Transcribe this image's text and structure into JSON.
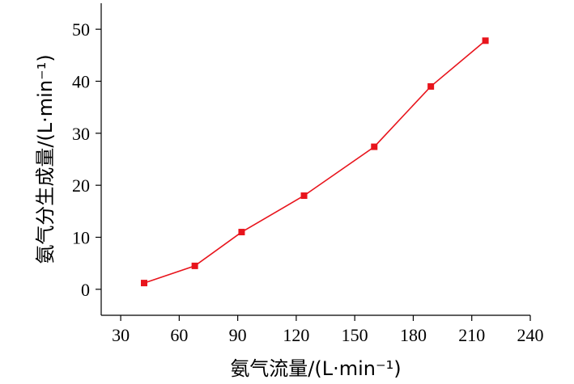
{
  "chart_data": {
    "type": "line",
    "xlabel": "氨气流量/(L·min⁻¹)",
    "ylabel": "氨气分生成量/(L·min⁻¹)",
    "xlim": [
      20,
      240
    ],
    "ylim": [
      -5,
      55
    ],
    "x_ticks": [
      30,
      60,
      90,
      120,
      150,
      180,
      210,
      240
    ],
    "y_ticks": [
      0,
      10,
      20,
      30,
      40,
      50
    ],
    "grid": false,
    "series": [
      {
        "color": "#e8141c",
        "marker": "square",
        "points": [
          {
            "x": 42,
            "y": 1.2
          },
          {
            "x": 68,
            "y": 4.5
          },
          {
            "x": 92,
            "y": 11
          },
          {
            "x": 124,
            "y": 18
          },
          {
            "x": 160,
            "y": 27.4
          },
          {
            "x": 189,
            "y": 39
          },
          {
            "x": 217,
            "y": 47.8
          }
        ]
      }
    ]
  }
}
